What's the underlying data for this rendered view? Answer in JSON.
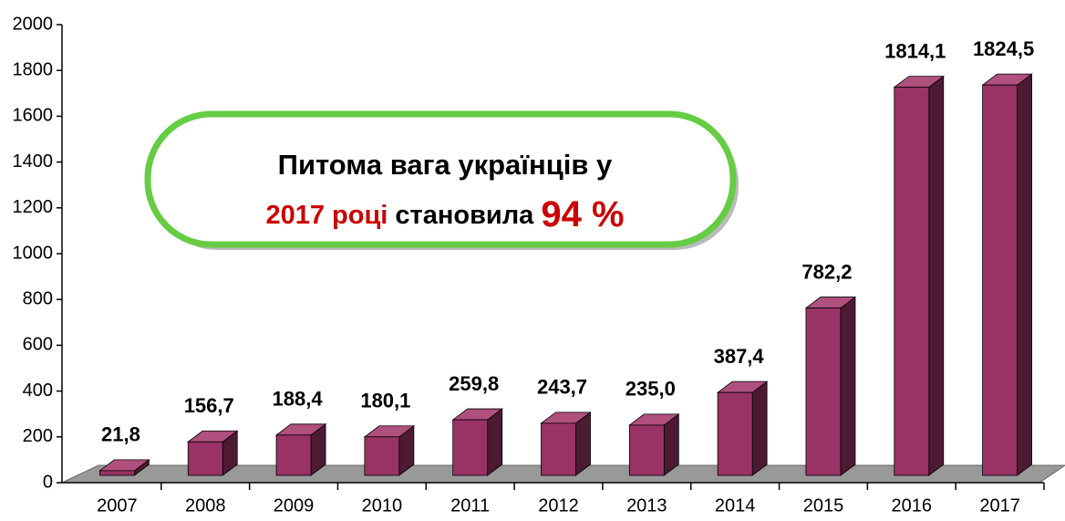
{
  "chart_data": {
    "type": "bar3d",
    "categories": [
      "2007",
      "2008",
      "2009",
      "2010",
      "2011",
      "2012",
      "2013",
      "2014",
      "2015",
      "2016",
      "2017"
    ],
    "values": [
      21.8,
      156.7,
      188.4,
      180.1,
      259.8,
      243.7,
      235.0,
      387.4,
      782.2,
      1814.1,
      1824.5
    ],
    "value_labels": [
      "21,8",
      "156,7",
      "188,4",
      "180,1",
      "259,8",
      "243,7",
      "235,0",
      "387,4",
      "782,2",
      "1814,1",
      "1824,5"
    ],
    "color": "#993366",
    "ylim": [
      0,
      2000
    ],
    "yticks": [
      0,
      200,
      400,
      600,
      800,
      1000,
      1200,
      1400,
      1600,
      1800,
      2000
    ],
    "annotation": {
      "line1": "Питома вага українців у",
      "year": "2017 році",
      "middle": " становила ",
      "share": "94 %"
    }
  }
}
